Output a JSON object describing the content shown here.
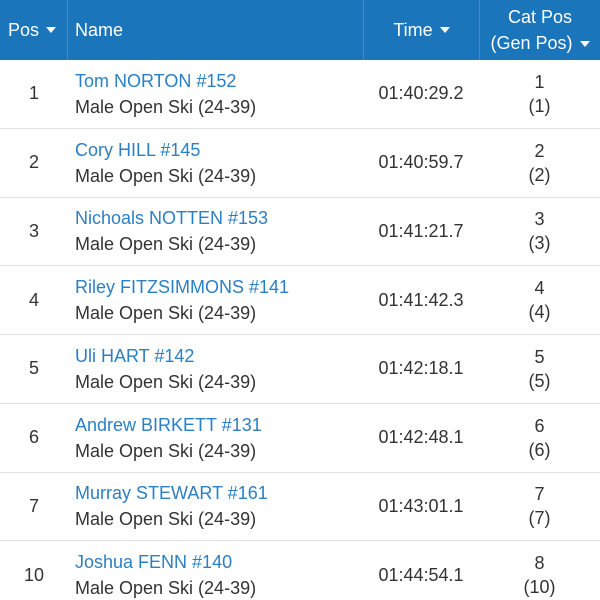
{
  "header": {
    "pos": "Pos",
    "name": "Name",
    "time": "Time",
    "cat_line1": "Cat Pos",
    "cat_line2": "(Gen Pos)"
  },
  "colors": {
    "header_bg": "#1a75bb",
    "link": "#2b7fc4",
    "text": "#333333"
  },
  "rows": [
    {
      "pos": "1",
      "name": "Tom NORTON #152",
      "category": "Male Open Ski (24-39)",
      "time": "01:40:29.2",
      "cat_pos": "1",
      "gen_pos": "(1)"
    },
    {
      "pos": "2",
      "name": "Cory HILL #145",
      "category": "Male Open Ski (24-39)",
      "time": "01:40:59.7",
      "cat_pos": "2",
      "gen_pos": "(2)"
    },
    {
      "pos": "3",
      "name": "Nichoals NOTTEN #153",
      "category": "Male Open Ski (24-39)",
      "time": "01:41:21.7",
      "cat_pos": "3",
      "gen_pos": "(3)"
    },
    {
      "pos": "4",
      "name": "Riley FITZSIMMONS #141",
      "category": "Male Open Ski (24-39)",
      "time": "01:41:42.3",
      "cat_pos": "4",
      "gen_pos": "(4)"
    },
    {
      "pos": "5",
      "name": "Uli HART #142",
      "category": "Male Open Ski (24-39)",
      "time": "01:42:18.1",
      "cat_pos": "5",
      "gen_pos": "(5)"
    },
    {
      "pos": "6",
      "name": "Andrew BIRKETT #131",
      "category": "Male Open Ski (24-39)",
      "time": "01:42:48.1",
      "cat_pos": "6",
      "gen_pos": "(6)"
    },
    {
      "pos": "7",
      "name": "Murray STEWART #161",
      "category": "Male Open Ski (24-39)",
      "time": "01:43:01.1",
      "cat_pos": "7",
      "gen_pos": "(7)"
    },
    {
      "pos": "10",
      "name": "Joshua FENN #140",
      "category": "Male Open Ski (24-39)",
      "time": "01:44:54.1",
      "cat_pos": "8",
      "gen_pos": "(10)"
    }
  ]
}
